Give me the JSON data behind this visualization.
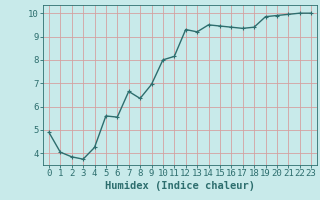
{
  "x": [
    0,
    1,
    2,
    3,
    4,
    5,
    6,
    7,
    8,
    9,
    10,
    11,
    12,
    13,
    14,
    15,
    16,
    17,
    18,
    19,
    20,
    21,
    22,
    23
  ],
  "y": [
    4.9,
    4.05,
    3.85,
    3.75,
    4.25,
    5.6,
    5.55,
    6.65,
    6.35,
    6.95,
    8.0,
    8.15,
    9.3,
    9.2,
    9.5,
    9.45,
    9.4,
    9.35,
    9.4,
    9.85,
    9.9,
    9.95,
    10.0,
    10.0
  ],
  "line_color": "#2d6e6e",
  "marker": "+",
  "marker_size": 3,
  "bg_color": "#c8eaea",
  "grid_color": "#d4a0a0",
  "axis_color": "#2d6e6e",
  "xlabel": "Humidex (Indice chaleur)",
  "xlim": [
    -0.5,
    23.5
  ],
  "ylim": [
    3.5,
    10.35
  ],
  "yticks": [
    4,
    5,
    6,
    7,
    8,
    9,
    10
  ],
  "xticks": [
    0,
    1,
    2,
    3,
    4,
    5,
    6,
    7,
    8,
    9,
    10,
    11,
    12,
    13,
    14,
    15,
    16,
    17,
    18,
    19,
    20,
    21,
    22,
    23
  ],
  "xlabel_fontsize": 7.5,
  "tick_fontsize": 6.5,
  "line_width": 1.0
}
